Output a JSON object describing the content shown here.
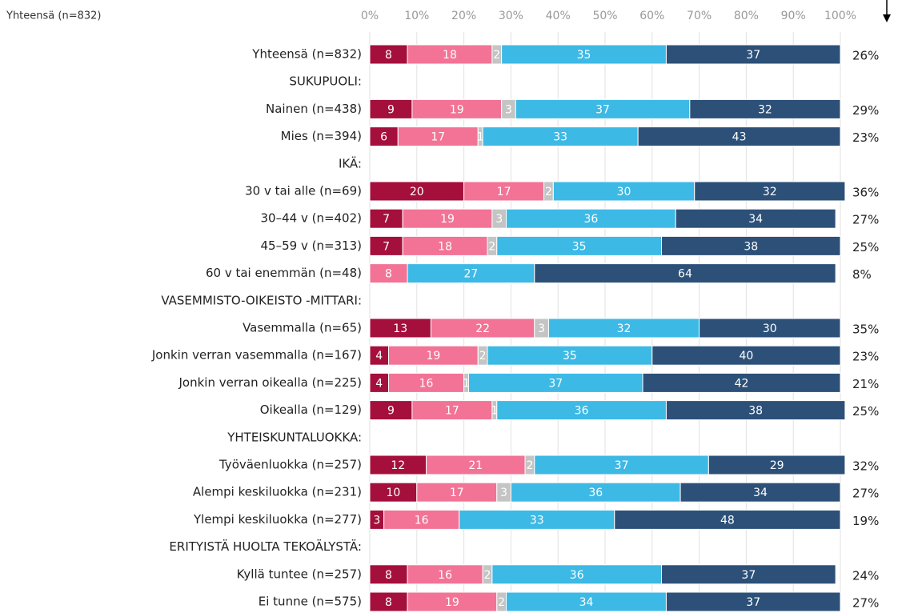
{
  "chart_data": {
    "type": "stacked-bar-horizontal",
    "subtitle": "Yhteensä (n=832)",
    "categories": [
      "Yhteensä (n=832)",
      "SUKUPUOLI:",
      "Nainen (n=438)",
      "Mies (n=394)",
      "IKÄ:",
      "30 v tai alle (n=69)",
      "30–44 v (n=402)",
      "45–59 v (n=313)",
      "60 v tai enemmän (n=48)",
      "VASEMMISTO-OIKEISTO -MITTARI:",
      "Vasemmalla (n=65)",
      "Jonkin verran vasemmalla (n=167)",
      "Jonkin verran oikealla (n=225)",
      "Oikealla (n=129)",
      "YHTEISKUNTALUOKKA:",
      "Työväenluokka (n=257)",
      "Alempi keskiluokka (n=231)",
      "Ylempi keskiluokka (n=277)",
      "ERITYISTÄ HUOLTA TEKOÄLYSTÄ:",
      "Kyllä tuntee (n=257)",
      "Ei tunne (n=575)"
    ],
    "series": [
      {
        "color": "#a50f3c",
        "values": [
          8,
          null,
          9,
          6,
          null,
          20,
          7,
          7,
          null,
          null,
          13,
          4,
          4,
          9,
          null,
          12,
          10,
          3,
          null,
          8,
          8
        ]
      },
      {
        "color": "#f27395",
        "values": [
          18,
          null,
          19,
          17,
          null,
          17,
          19,
          18,
          8,
          null,
          22,
          19,
          16,
          17,
          null,
          21,
          17,
          16,
          null,
          16,
          19
        ]
      },
      {
        "color": "#c4c4c4",
        "values": [
          2,
          null,
          3,
          1,
          null,
          2,
          3,
          2,
          null,
          null,
          3,
          2,
          1,
          1,
          null,
          2,
          3,
          null,
          null,
          2,
          2
        ]
      },
      {
        "color": "#3db9e5",
        "values": [
          35,
          null,
          37,
          33,
          null,
          30,
          36,
          35,
          27,
          null,
          32,
          35,
          37,
          36,
          null,
          37,
          36,
          33,
          null,
          36,
          34
        ]
      },
      {
        "color": "#2c5078",
        "values": [
          37,
          null,
          32,
          43,
          null,
          32,
          34,
          38,
          64,
          null,
          30,
          40,
          42,
          38,
          null,
          29,
          34,
          48,
          null,
          37,
          37
        ]
      }
    ],
    "totals": {
      "values": [
        26,
        null,
        29,
        23,
        null,
        36,
        27,
        25,
        8,
        null,
        35,
        23,
        21,
        25,
        null,
        32,
        27,
        19,
        null,
        24,
        27
      ],
      "value_labels": [
        "26%",
        null,
        "29%",
        "23%",
        null,
        "36%",
        "27%",
        "25%",
        "8%",
        null,
        "35%",
        "23%",
        "21%",
        "25%",
        null,
        "32%",
        "27%",
        "19%",
        null,
        "24%",
        "27%"
      ]
    },
    "xlim": [
      0,
      100
    ],
    "xticks": [
      {
        "value": 0,
        "label": "0%"
      },
      {
        "value": 10,
        "label": "10%"
      },
      {
        "value": 20,
        "label": "20%"
      },
      {
        "value": 30,
        "label": "30%"
      },
      {
        "value": 40,
        "label": "40%"
      },
      {
        "value": 50,
        "label": "50%"
      },
      {
        "value": 60,
        "label": "60%"
      },
      {
        "value": 70,
        "label": "70%"
      },
      {
        "value": 80,
        "label": "80%"
      },
      {
        "value": 90,
        "label": "90%"
      },
      {
        "value": 100,
        "label": "100%"
      }
    ],
    "grid": true
  }
}
